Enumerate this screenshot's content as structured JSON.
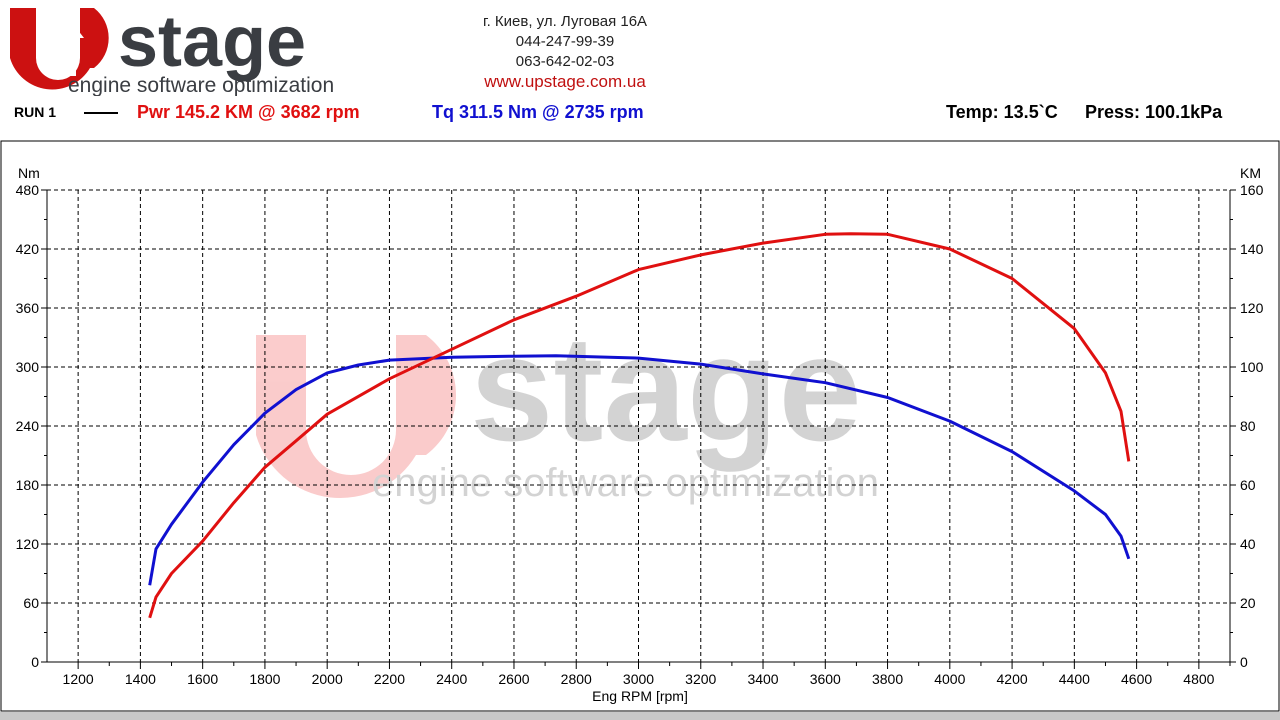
{
  "header": {
    "logo_text": "stage",
    "logo_tagline": "engine software optimization",
    "address": "г. Киев, ул. Луговая 16А",
    "phone1": "044-247-99-39",
    "phone2": "063-642-02-03",
    "website": "www.upstage.com.ua"
  },
  "run": {
    "label": "RUN 1",
    "power_summary": "Pwr  145.2 KM @ 3682 rpm",
    "torque_summary": "Tq 311.5 Nm @ 2735 rpm",
    "temp": "Temp: 13.5`C",
    "press": "Press: 100.1kPa"
  },
  "colors": {
    "power": "#e01010",
    "torque": "#1010d0",
    "brand_red": "#cc1111",
    "brand_grey": "#3a3d42"
  },
  "chart_data": {
    "type": "line",
    "xlabel": "Eng RPM [rpm]",
    "ylabel_left": "Nm",
    "ylabel_right": "KM",
    "xlim": [
      1100,
      4900
    ],
    "ylim_left": [
      0,
      480
    ],
    "ylim_right": [
      0,
      160
    ],
    "x_ticks": [
      1200,
      1400,
      1600,
      1800,
      2000,
      2200,
      2400,
      2600,
      2800,
      3000,
      3200,
      3400,
      3600,
      3800,
      4000,
      4200,
      4400,
      4600,
      4800
    ],
    "y_ticks_left": [
      0,
      60,
      120,
      180,
      240,
      300,
      360,
      420,
      480
    ],
    "y_ticks_right": [
      0,
      20,
      40,
      60,
      80,
      100,
      120,
      140,
      160
    ],
    "grid": true,
    "series": [
      {
        "name": "Tq",
        "axis": "left",
        "color": "#1010d0",
        "x": [
          1430,
          1450,
          1500,
          1600,
          1700,
          1800,
          1900,
          2000,
          2100,
          2200,
          2400,
          2600,
          2735,
          3000,
          3200,
          3400,
          3600,
          3800,
          4000,
          4200,
          4400,
          4500,
          4550,
          4575
        ],
        "y": [
          78,
          115,
          140,
          183,
          221,
          253,
          277,
          294,
          302,
          307,
          310,
          311,
          311.5,
          309,
          303,
          293,
          284,
          269,
          245,
          214,
          174,
          150,
          128,
          105
        ]
      },
      {
        "name": "Pwr",
        "axis": "right",
        "color": "#e01010",
        "x": [
          1430,
          1450,
          1500,
          1600,
          1700,
          1800,
          1900,
          2000,
          2200,
          2400,
          2600,
          2800,
          3000,
          3200,
          3400,
          3600,
          3682,
          3800,
          4000,
          4200,
          4400,
          4500,
          4550,
          4575
        ],
        "y": [
          15,
          22,
          30,
          41,
          54,
          66,
          75,
          84,
          96,
          106,
          116,
          124,
          133,
          138,
          142,
          145,
          145.2,
          145,
          140,
          130,
          113,
          98,
          85,
          68
        ]
      }
    ]
  }
}
